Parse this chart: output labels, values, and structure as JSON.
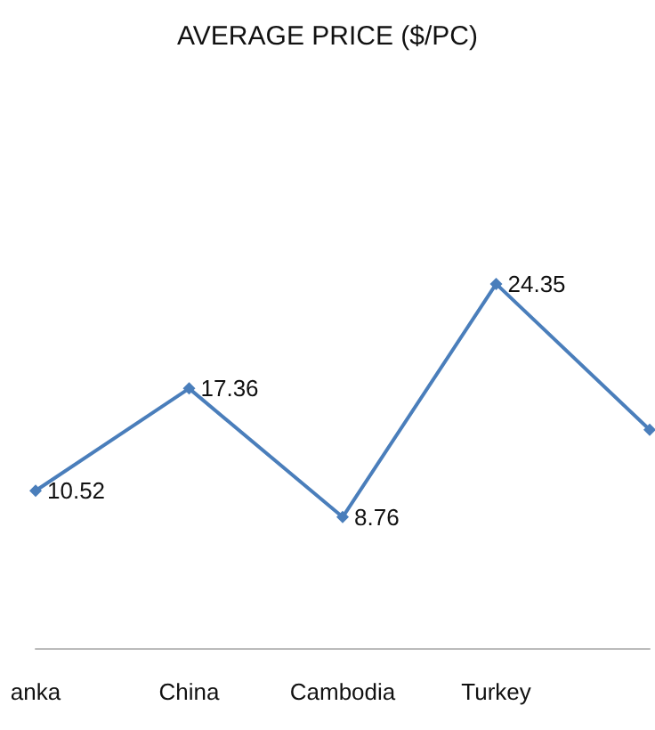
{
  "chart_data": {
    "type": "line",
    "title": "AVERAGE PRICE ($/PC)",
    "categories": [
      "anka",
      "China",
      "Cambodia",
      "Turkey",
      null
    ],
    "series": [
      {
        "color": "#4a7ebb",
        "values": [
          10.52,
          17.36,
          8.76,
          24.35,
          14.6
        ],
        "value_labels": [
          "10.52",
          "17.36",
          "8.76",
          "24.35",
          null
        ]
      }
    ],
    "tick_labels": "x",
    "grid": false,
    "marker": "diamond",
    "line_style": "solid"
  }
}
